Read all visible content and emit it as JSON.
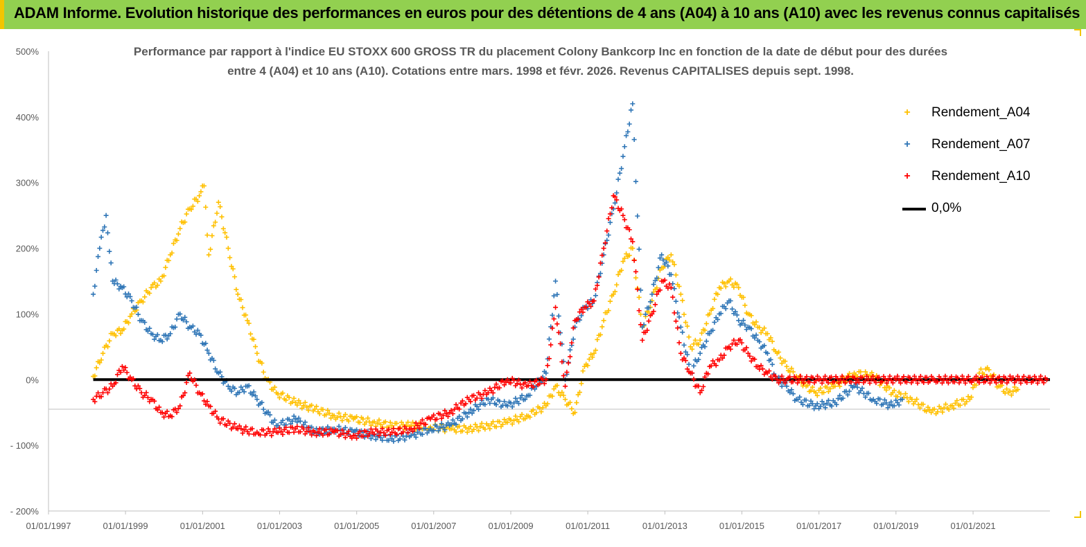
{
  "banner": {
    "title": "ADAM Informe. Evolution historique des performances en euros pour des détentions de 4 ans (A04) à 10 ans (A10) avec les revenus connus capitalisés"
  },
  "colors": {
    "banner_bg": "#92d050",
    "A04": "#ffc000",
    "A07": "#2e75b6",
    "A10": "#ff0000",
    "zero_line": "#000000"
  },
  "chart_data": {
    "type": "scatter",
    "title_line1": "Performance par rapport à l'indice EU STOXX 600 GROSS TR  du placement Colony Bankcorp Inc en fonction de la date de début pour des durées",
    "title_line2": "entre 4 (A04) et 10 ans (A10). Cotations entre mars. 1998 et févr. 2026. Revenus CAPITALISES depuis sept. 1998.",
    "x_ticks": [
      "01/01/1997",
      "01/01/1999",
      "01/01/2001",
      "01/01/2003",
      "01/01/2005",
      "01/01/2007",
      "01/01/2009",
      "01/01/2011",
      "01/01/2013",
      "01/01/2015",
      "01/01/2017",
      "01/01/2019",
      "01/01/2021"
    ],
    "y_ticks": [
      "500%",
      "400%",
      "300%",
      "200%",
      "100%",
      "0%",
      "- 100%",
      "- 200%"
    ],
    "ylim": [
      -200,
      500
    ],
    "xlim": [
      "1997-01-01",
      "2022-12-31"
    ],
    "legend_position": "top-right",
    "series": [
      {
        "name": "Rendement_A04",
        "x": [
          "1998-03-01",
          "1998-06-01",
          "1998-09-01",
          "1998-12-01",
          "1999-03-01",
          "1999-06-01",
          "1999-09-01",
          "1999-12-01",
          "2000-03-01",
          "2000-06-01",
          "2000-09-01",
          "2000-12-01",
          "2001-01-15",
          "2001-03-01",
          "2001-06-01",
          "2001-09-01",
          "2001-12-01",
          "2002-03-01",
          "2002-06-01",
          "2002-09-01",
          "2002-12-01",
          "2003-06-01",
          "2003-12-01",
          "2004-06-01",
          "2004-12-01",
          "2005-06-01",
          "2005-12-01",
          "2006-06-01",
          "2006-12-01",
          "2007-06-01",
          "2007-12-01",
          "2008-06-01",
          "2008-12-01",
          "2009-06-01",
          "2009-12-01",
          "2010-03-01",
          "2010-06-01",
          "2010-09-01",
          "2010-12-01",
          "2011-03-01",
          "2011-06-01",
          "2011-09-01",
          "2011-12-01",
          "2012-03-01",
          "2012-06-01",
          "2012-09-01",
          "2012-12-01",
          "2013-03-01",
          "2013-06-01",
          "2013-09-01",
          "2013-12-01",
          "2014-03-01",
          "2014-06-01",
          "2014-09-01",
          "2014-12-01",
          "2015-03-01",
          "2015-06-01",
          "2015-09-01",
          "2015-12-01",
          "2016-03-01",
          "2016-06-01",
          "2016-09-01",
          "2016-12-01",
          "2017-06-01",
          "2017-12-01",
          "2018-06-01",
          "2018-12-01",
          "2019-06-01",
          "2019-12-01",
          "2020-06-01",
          "2020-12-01",
          "2021-03-01",
          "2021-06-01",
          "2021-09-01",
          "2021-12-01",
          "2022-03-01"
        ],
        "y": [
          5,
          40,
          70,
          75,
          100,
          120,
          140,
          150,
          190,
          230,
          260,
          280,
          295,
          190,
          270,
          200,
          130,
          90,
          40,
          0,
          -20,
          -35,
          -45,
          -55,
          -60,
          -65,
          -70,
          -70,
          -72,
          -75,
          -75,
          -70,
          -65,
          -55,
          -40,
          -10,
          -30,
          -50,
          20,
          40,
          90,
          130,
          180,
          200,
          80,
          120,
          170,
          190,
          130,
          50,
          60,
          100,
          140,
          150,
          140,
          100,
          80,
          70,
          40,
          20,
          5,
          -10,
          -20,
          -10,
          10,
          5,
          -20,
          -30,
          -50,
          -40,
          -30,
          10,
          15,
          -10,
          -20,
          -15
        ],
        "color": "#ffc000"
      },
      {
        "name": "Rendement_A07",
        "x": [
          "1998-03-01",
          "1998-05-01",
          "1998-07-01",
          "1998-09-01",
          "1998-12-01",
          "1999-03-01",
          "1999-06-01",
          "1999-09-01",
          "1999-12-01",
          "2000-03-01",
          "2000-06-01",
          "2000-09-01",
          "2000-12-01",
          "2001-03-01",
          "2001-06-01",
          "2001-09-01",
          "2001-12-01",
          "2002-03-01",
          "2002-06-01",
          "2002-09-01",
          "2002-12-01",
          "2003-06-01",
          "2003-12-01",
          "2004-06-01",
          "2004-12-01",
          "2005-06-01",
          "2005-12-01",
          "2006-06-01",
          "2006-12-01",
          "2007-06-01",
          "2007-12-01",
          "2008-06-01",
          "2008-12-01",
          "2009-06-01",
          "2009-12-01",
          "2010-03-01",
          "2010-06-01",
          "2010-09-01",
          "2010-12-01",
          "2011-03-01",
          "2011-06-01",
          "2011-09-01",
          "2011-12-01",
          "2012-03-01",
          "2012-06-01",
          "2012-09-01",
          "2012-12-01",
          "2013-03-01",
          "2013-06-01",
          "2013-09-01",
          "2013-12-01",
          "2014-03-01",
          "2014-06-01",
          "2014-09-01",
          "2014-12-01",
          "2015-03-01",
          "2015-06-01",
          "2015-09-01",
          "2015-12-01",
          "2016-03-01",
          "2016-06-01",
          "2016-12-01",
          "2017-06-01",
          "2017-12-01",
          "2018-06-01",
          "2018-12-01",
          "2019-03-01"
        ],
        "y": [
          130,
          200,
          250,
          150,
          140,
          120,
          90,
          70,
          60,
          70,
          100,
          80,
          70,
          40,
          10,
          -10,
          -20,
          -10,
          -30,
          -50,
          -70,
          -60,
          -80,
          -75,
          -80,
          -85,
          -90,
          -85,
          -75,
          -70,
          -50,
          -30,
          -40,
          -25,
          10,
          150,
          0,
          80,
          110,
          120,
          190,
          260,
          340,
          420,
          80,
          130,
          190,
          160,
          80,
          10,
          40,
          70,
          100,
          120,
          90,
          80,
          60,
          40,
          0,
          -10,
          -30,
          -40,
          -35,
          -10,
          -30,
          -40,
          -30
        ],
        "color": "#2e75b6"
      },
      {
        "name": "Rendement_A10",
        "x": [
          "1998-03-01",
          "1998-06-01",
          "1998-09-01",
          "1998-12-01",
          "1999-03-01",
          "1999-06-01",
          "1999-09-01",
          "1999-12-01",
          "2000-03-01",
          "2000-06-01",
          "2000-09-01",
          "2000-12-01",
          "2001-03-01",
          "2001-06-01",
          "2001-12-01",
          "2002-06-01",
          "2002-12-01",
          "2003-06-01",
          "2003-12-01",
          "2004-06-01",
          "2004-12-01",
          "2005-06-01",
          "2005-12-01",
          "2006-06-01",
          "2006-12-01",
          "2007-06-01",
          "2007-12-01",
          "2008-06-01",
          "2008-12-01",
          "2009-06-01",
          "2009-12-01",
          "2010-03-01",
          "2010-06-01",
          "2010-09-01",
          "2010-12-01",
          "2011-03-01",
          "2011-06-01",
          "2011-09-01",
          "2011-12-01",
          "2012-03-01",
          "2012-06-01",
          "2012-09-01",
          "2012-12-01",
          "2013-03-01",
          "2013-06-01",
          "2013-09-01",
          "2013-12-01",
          "2014-03-01",
          "2014-06-01",
          "2014-09-01",
          "2014-12-01",
          "2015-03-01",
          "2015-06-01",
          "2015-09-01",
          "2015-12-01",
          "2016-03-01",
          "2017-01-01",
          "2018-01-01",
          "2019-01-01",
          "2020-01-01",
          "2021-01-01",
          "2022-01-01",
          "2022-12-01"
        ],
        "y": [
          -30,
          -20,
          -10,
          20,
          0,
          -20,
          -30,
          -50,
          -55,
          -40,
          10,
          -20,
          -40,
          -60,
          -75,
          -80,
          -80,
          -75,
          -80,
          -80,
          -85,
          -80,
          -80,
          -75,
          -60,
          -50,
          -30,
          -20,
          0,
          -10,
          0,
          110,
          -10,
          90,
          110,
          120,
          200,
          280,
          250,
          210,
          60,
          100,
          150,
          140,
          40,
          10,
          -20,
          20,
          30,
          50,
          60,
          40,
          20,
          10,
          0,
          0,
          0,
          0,
          0,
          0,
          0,
          0,
          0
        ],
        "color": "#ff0000"
      },
      {
        "name": "0,0%",
        "x": [
          "1998-03-01",
          "2022-12-31"
        ],
        "y": [
          0,
          0
        ],
        "color": "#000000"
      }
    ]
  }
}
